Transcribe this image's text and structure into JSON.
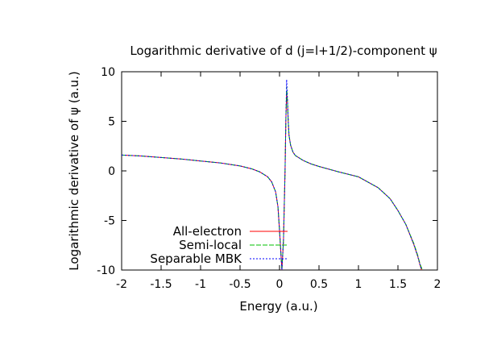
{
  "chart_data": {
    "type": "line",
    "title": "Logarithmic derivative of d (j=l+1/2)-component ψ",
    "xlabel": "Energy (a.u.)",
    "ylabel": "Logarithmic derivative of ψ (a.u.)",
    "xlim": [
      -2,
      2
    ],
    "ylim": [
      -10,
      10
    ],
    "xticks": [
      -2,
      -1.5,
      -1,
      -0.5,
      0,
      0.5,
      1,
      1.5,
      2
    ],
    "yticks": [
      -10,
      -5,
      0,
      5,
      10
    ],
    "xtick_labels": [
      "-2",
      "-1.5",
      "-1",
      "-0.5",
      "0",
      "0.5",
      "1",
      "1.5",
      "2"
    ],
    "ytick_labels": [
      "-10",
      "-5",
      "0",
      "5",
      "10"
    ],
    "grid": false,
    "legend_position": "bottom-left",
    "series": [
      {
        "name": "All-electron",
        "color": "#ff0000",
        "dash": "solid",
        "x": [
          -2.0,
          -1.75,
          -1.5,
          -1.25,
          -1.0,
          -0.75,
          -0.5,
          -0.35,
          -0.25,
          -0.15,
          -0.1,
          -0.05,
          -0.02,
          0.0,
          0.03,
          0.05,
          0.07,
          0.08,
          0.09,
          0.1,
          0.11,
          0.12,
          0.14,
          0.17,
          0.2,
          0.3,
          0.4,
          0.5,
          0.75,
          1.0,
          1.25,
          1.4,
          1.5,
          1.6,
          1.7,
          1.75,
          1.78,
          1.8
        ],
        "y": [
          1.6,
          1.5,
          1.35,
          1.2,
          1.0,
          0.8,
          0.5,
          0.2,
          -0.1,
          -0.6,
          -1.1,
          -2.1,
          -3.6,
          -6.0,
          -10.0,
          -7.0,
          0.0,
          5.0,
          7.8,
          7.0,
          5.0,
          3.6,
          2.6,
          1.9,
          1.55,
          1.05,
          0.7,
          0.45,
          -0.1,
          -0.6,
          -1.7,
          -2.8,
          -4.0,
          -5.4,
          -7.4,
          -8.6,
          -9.5,
          -10.0
        ]
      },
      {
        "name": "Semi-local",
        "color": "#00c000",
        "dash": "6,2",
        "x": [
          -2.0,
          -1.75,
          -1.5,
          -1.25,
          -1.0,
          -0.75,
          -0.5,
          -0.35,
          -0.25,
          -0.15,
          -0.1,
          -0.05,
          -0.02,
          0.0,
          0.03,
          0.05,
          0.07,
          0.08,
          0.09,
          0.1,
          0.11,
          0.12,
          0.14,
          0.17,
          0.2,
          0.3,
          0.4,
          0.5,
          0.75,
          1.0,
          1.25,
          1.4,
          1.5,
          1.6,
          1.7,
          1.75,
          1.78,
          1.81
        ],
        "y": [
          1.6,
          1.5,
          1.35,
          1.2,
          1.0,
          0.8,
          0.5,
          0.2,
          -0.1,
          -0.6,
          -1.1,
          -2.1,
          -3.6,
          -6.0,
          -10.0,
          -7.0,
          0.0,
          5.0,
          8.5,
          7.2,
          5.1,
          3.6,
          2.6,
          1.9,
          1.55,
          1.05,
          0.7,
          0.45,
          -0.1,
          -0.6,
          -1.7,
          -2.8,
          -4.0,
          -5.4,
          -7.3,
          -8.5,
          -9.4,
          -10.0
        ]
      },
      {
        "name": "Separable MBK",
        "color": "#0000ff",
        "dash": "2,2",
        "x": [
          -2.0,
          -1.75,
          -1.5,
          -1.25,
          -1.0,
          -0.75,
          -0.5,
          -0.35,
          -0.25,
          -0.15,
          -0.1,
          -0.05,
          -0.02,
          0.0,
          0.03,
          0.05,
          0.07,
          0.08,
          0.09,
          0.1,
          0.11,
          0.12,
          0.14,
          0.17,
          0.2,
          0.3,
          0.4,
          0.5,
          0.75,
          1.0,
          1.25,
          1.4,
          1.5,
          1.6,
          1.7,
          1.75,
          1.78,
          1.8
        ],
        "y": [
          1.6,
          1.5,
          1.35,
          1.2,
          1.0,
          0.8,
          0.5,
          0.2,
          -0.1,
          -0.6,
          -1.1,
          -2.1,
          -3.6,
          -6.0,
          -10.0,
          -7.0,
          0.0,
          5.0,
          9.2,
          7.3,
          5.1,
          3.6,
          2.6,
          1.9,
          1.55,
          1.05,
          0.7,
          0.45,
          -0.1,
          -0.6,
          -1.7,
          -2.8,
          -4.0,
          -5.4,
          -7.4,
          -8.6,
          -9.5,
          -10.0
        ]
      }
    ]
  }
}
